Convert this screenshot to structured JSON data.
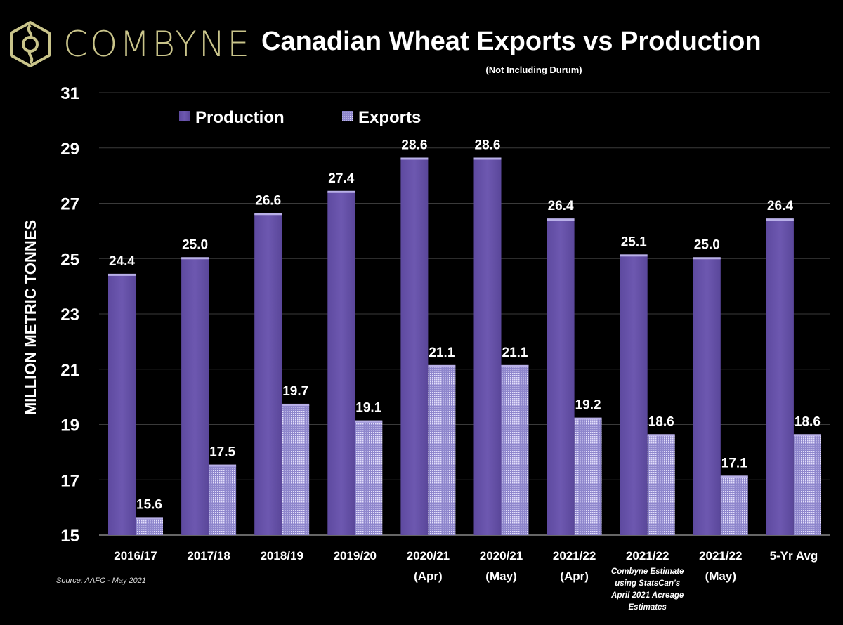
{
  "logo_text": "COMBYNE",
  "chart_data": {
    "type": "bar",
    "title": "Canadian Wheat Exports vs Production",
    "subtitle": "(Not Including Durum)",
    "xlabel": "",
    "ylabel": "MILLION METRIC TONNES",
    "ylim": [
      15,
      31
    ],
    "yticks": [
      15,
      17,
      19,
      21,
      23,
      25,
      27,
      29,
      31
    ],
    "grid": true,
    "legend_position": "top-left",
    "categories": [
      {
        "label": "2016/17",
        "sub": ""
      },
      {
        "label": "2017/18",
        "sub": ""
      },
      {
        "label": "2018/19",
        "sub": ""
      },
      {
        "label": "2019/20",
        "sub": ""
      },
      {
        "label": "2020/21",
        "sub": "(Apr)"
      },
      {
        "label": "2020/21",
        "sub": "(May)"
      },
      {
        "label": "2021/22",
        "sub": "(Apr)"
      },
      {
        "label": "2021/22",
        "sub": "",
        "note": [
          "Combyne Estimate",
          "using StatsCan's",
          "April 2021 Acreage",
          "Estimates"
        ]
      },
      {
        "label": "2021/22",
        "sub": "(May)"
      },
      {
        "label": "5-Yr Avg",
        "sub": ""
      }
    ],
    "series": [
      {
        "name": "Production",
        "color": "#6a55ac",
        "values": [
          24.4,
          25.0,
          26.6,
          27.4,
          28.6,
          28.6,
          26.4,
          25.1,
          25.0,
          26.4
        ]
      },
      {
        "name": "Exports",
        "color": "#b4aee0",
        "values": [
          15.6,
          17.5,
          19.7,
          19.1,
          21.1,
          21.1,
          19.2,
          18.6,
          17.1,
          18.6
        ]
      }
    ],
    "source": "Source: AAFC - May 2021"
  }
}
